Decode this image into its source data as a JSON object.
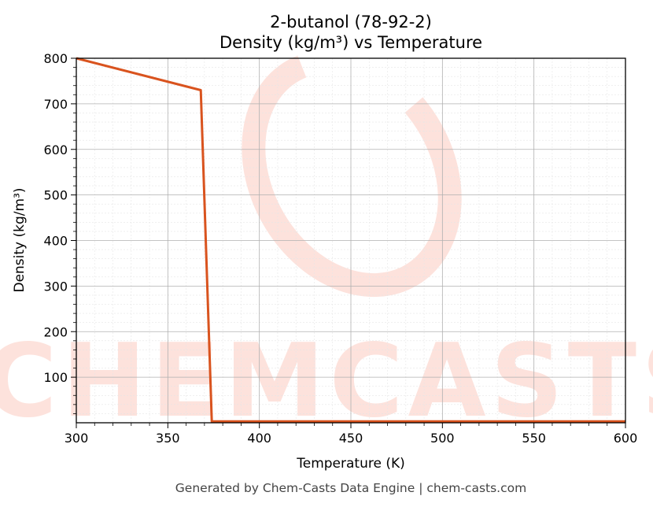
{
  "chart_data": {
    "type": "line",
    "title": "2-butanol (78-92-2)",
    "subtitle": "Density (kg/m³) vs Temperature",
    "xlabel": "Temperature (K)",
    "ylabel": "Density (kg/m³)",
    "xlim": [
      300,
      600
    ],
    "ylim": [
      0,
      800
    ],
    "x_ticks": [
      300,
      350,
      400,
      450,
      500,
      550,
      600
    ],
    "y_ticks": [
      100,
      200,
      300,
      400,
      500,
      600,
      700,
      800
    ],
    "grid": true,
    "series": [
      {
        "color": "#d9531e",
        "x": [
          300,
          368,
          374,
          600
        ],
        "y": [
          800,
          730,
          3,
          3
        ]
      }
    ]
  },
  "watermark": {
    "text": "CHEMCASTS",
    "color": "#fde2dc"
  },
  "footer": "Generated by Chem-Casts Data Engine | chem-casts.com"
}
